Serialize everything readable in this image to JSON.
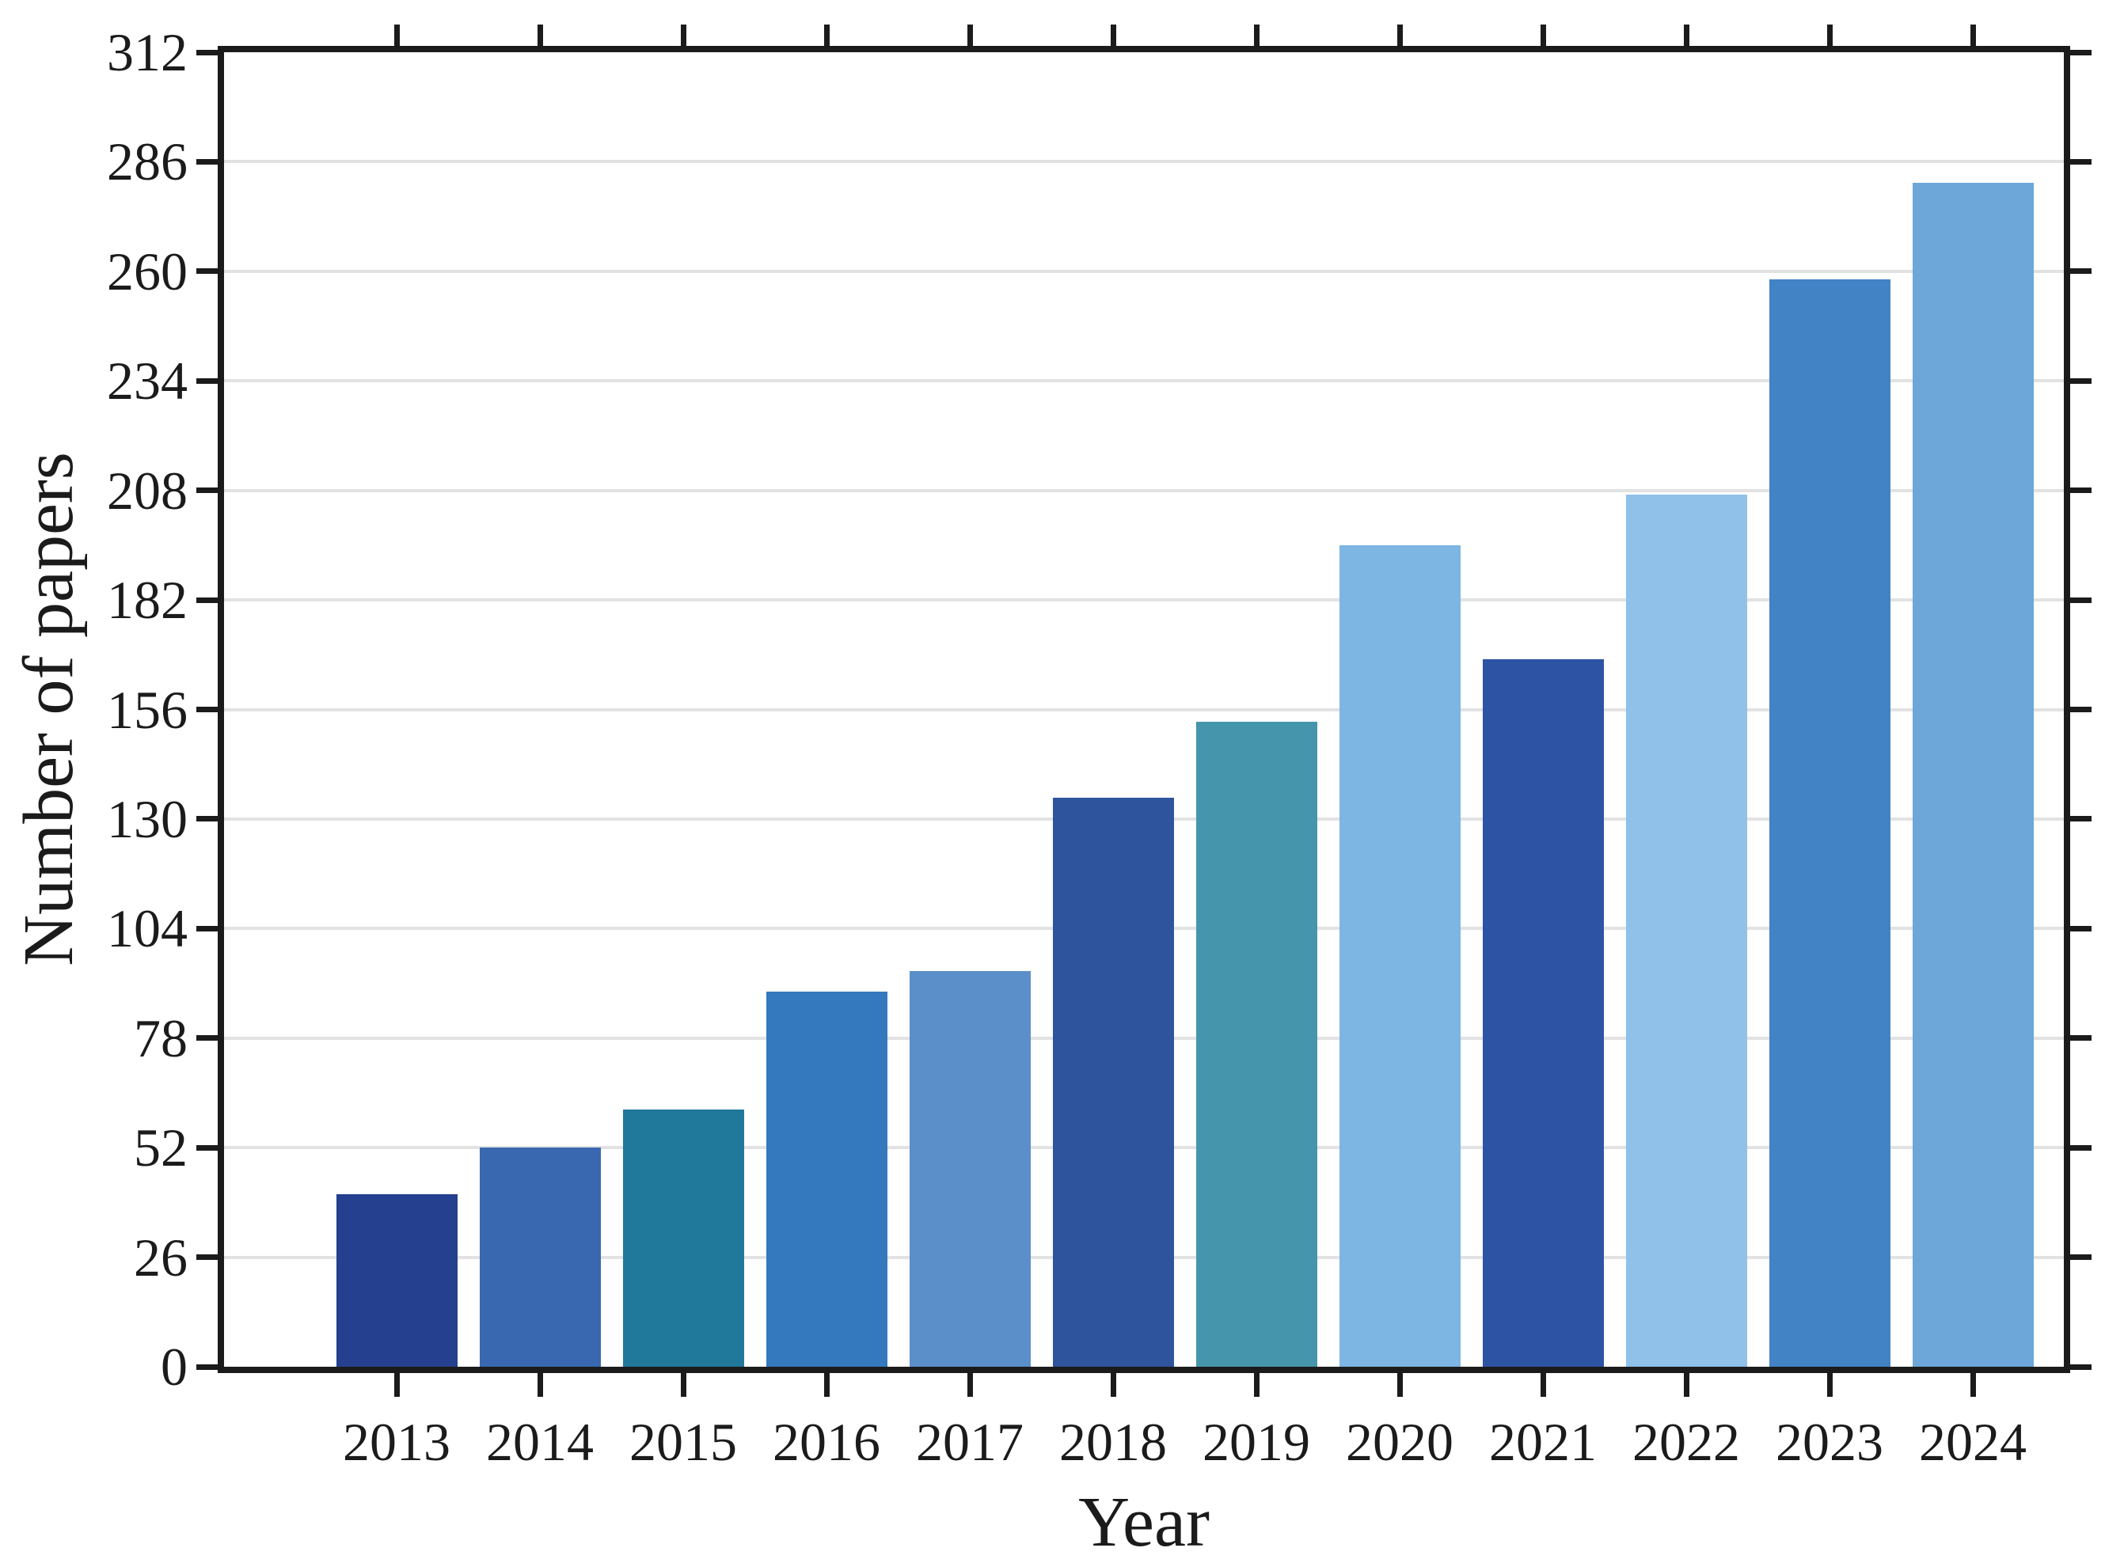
{
  "chart_data": {
    "type": "bar",
    "title": "",
    "xlabel": "Year",
    "ylabel": "Number of papers",
    "categories": [
      "2013",
      "2014",
      "2015",
      "2016",
      "2017",
      "2018",
      "2019",
      "2020",
      "2021",
      "2022",
      "2023",
      "2024"
    ],
    "values": [
      41,
      52,
      61,
      89,
      94,
      135,
      153,
      195,
      168,
      207,
      258,
      281
    ],
    "bar_colors": [
      "#24408E",
      "#3A68B0",
      "#20789A",
      "#3479BD",
      "#5B8FCA",
      "#2F549E",
      "#4596AC",
      "#7DB5E3",
      "#2D54A4",
      "#8FC1E9",
      "#4183C5",
      "#6DA7D9"
    ],
    "ylim": [
      0,
      312
    ],
    "yticks": [
      0,
      26,
      52,
      78,
      104,
      130,
      156,
      182,
      208,
      234,
      260,
      286,
      312
    ],
    "grid": "horizontal",
    "gridline_color": "#E2E2E2",
    "axis_color": "#1B1B1B",
    "background": "#FFFFFF",
    "legend": "none",
    "tick_style": "outward ticks on all four spines"
  }
}
